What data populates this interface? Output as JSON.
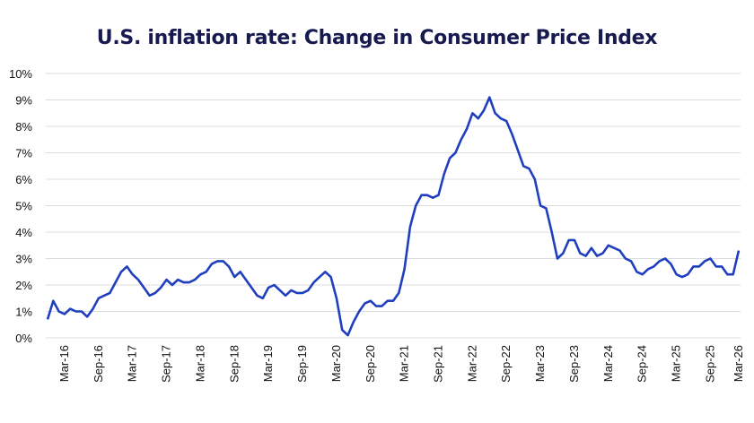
{
  "chart_data": {
    "type": "line",
    "title": "U.S. inflation rate: Change in Consumer Price Index",
    "xlabel": "",
    "ylabel": "",
    "ylim": [
      0,
      10
    ],
    "yticks": [
      "0%",
      "1%",
      "2%",
      "3%",
      "4%",
      "5%",
      "6%",
      "7%",
      "8%",
      "9%",
      "10%"
    ],
    "grid": true,
    "line_color": "#1f3fbf",
    "x": [
      "Dec-15",
      "Jan-16",
      "Feb-16",
      "Mar-16",
      "Apr-16",
      "May-16",
      "Jun-16",
      "Jul-16",
      "Aug-16",
      "Sep-16",
      "Oct-16",
      "Nov-16",
      "Dec-16",
      "Jan-17",
      "Feb-17",
      "Mar-17",
      "Apr-17",
      "May-17",
      "Jun-17",
      "Jul-17",
      "Aug-17",
      "Sep-17",
      "Oct-17",
      "Nov-17",
      "Dec-17",
      "Jan-18",
      "Feb-18",
      "Mar-18",
      "Apr-18",
      "May-18",
      "Jun-18",
      "Jul-18",
      "Aug-18",
      "Sep-18",
      "Oct-18",
      "Nov-18",
      "Dec-18",
      "Jan-19",
      "Feb-19",
      "Mar-19",
      "Apr-19",
      "May-19",
      "Jun-19",
      "Jul-19",
      "Aug-19",
      "Sep-19",
      "Oct-19",
      "Nov-19",
      "Dec-19",
      "Jan-20",
      "Feb-20",
      "Mar-20",
      "Apr-20",
      "May-20",
      "Jun-20",
      "Jul-20",
      "Aug-20",
      "Sep-20",
      "Oct-20",
      "Nov-20",
      "Dec-20",
      "Jan-21",
      "Feb-21",
      "Mar-21",
      "Apr-21",
      "May-21",
      "Jun-21",
      "Jul-21",
      "Aug-21",
      "Sep-21",
      "Oct-21",
      "Nov-21",
      "Dec-21",
      "Jan-22",
      "Feb-22",
      "Mar-22",
      "Apr-22",
      "May-22",
      "Jun-22",
      "Jul-22",
      "Aug-22",
      "Sep-22",
      "Oct-22",
      "Nov-22",
      "Dec-22",
      "Jan-23",
      "Feb-23",
      "Mar-23",
      "Apr-23",
      "May-23",
      "Jun-23",
      "Jul-23",
      "Aug-23",
      "Sep-23",
      "Oct-23",
      "Nov-23",
      "Dec-23",
      "Jan-24",
      "Feb-24",
      "Mar-24",
      "Apr-24",
      "May-24",
      "Jun-24",
      "Jul-24",
      "Aug-24",
      "Sep-24",
      "Oct-24",
      "Nov-24",
      "Dec-24",
      "Jan-25",
      "Feb-25",
      "Mar-25",
      "Apr-25",
      "May-25",
      "Jun-25",
      "Jul-25",
      "Aug-25",
      "Sep-25",
      "Nov-25",
      "Dec-25",
      "Jan-26",
      "Feb-26",
      "Mar-26"
    ],
    "values": [
      0.7,
      1.4,
      1.0,
      0.9,
      1.1,
      1.0,
      1.0,
      0.8,
      1.1,
      1.5,
      1.6,
      1.7,
      2.1,
      2.5,
      2.7,
      2.4,
      2.2,
      1.9,
      1.6,
      1.7,
      1.9,
      2.2,
      2.0,
      2.2,
      2.1,
      2.1,
      2.2,
      2.4,
      2.5,
      2.8,
      2.9,
      2.9,
      2.7,
      2.3,
      2.5,
      2.2,
      1.9,
      1.6,
      1.5,
      1.9,
      2.0,
      1.8,
      1.6,
      1.8,
      1.7,
      1.7,
      1.8,
      2.1,
      2.3,
      2.5,
      2.3,
      1.5,
      0.3,
      0.1,
      0.6,
      1.0,
      1.3,
      1.4,
      1.2,
      1.2,
      1.4,
      1.4,
      1.7,
      2.6,
      4.2,
      5.0,
      5.4,
      5.4,
      5.3,
      5.4,
      6.2,
      6.8,
      7.0,
      7.5,
      7.9,
      8.5,
      8.3,
      8.6,
      9.1,
      8.5,
      8.3,
      8.2,
      7.7,
      7.1,
      6.5,
      6.4,
      6.0,
      5.0,
      4.9,
      4.0,
      3.0,
      3.2,
      3.7,
      3.7,
      3.2,
      3.1,
      3.4,
      3.1,
      3.2,
      3.5,
      3.4,
      3.3,
      3.0,
      2.9,
      2.5,
      2.4,
      2.6,
      2.7,
      2.9,
      3.0,
      2.8,
      2.4,
      2.3,
      2.4,
      2.7,
      2.7,
      2.9,
      3.0,
      2.7,
      2.7,
      2.4,
      2.4,
      3.3
    ],
    "xtick_labels": [
      "Mar-16",
      "Sep-16",
      "Mar-17",
      "Sep-17",
      "Mar-18",
      "Sep-18",
      "Mar-19",
      "Sep-19",
      "Mar-20",
      "Sep-20",
      "Mar-21",
      "Sep-21",
      "Mar-22",
      "Sep-22",
      "Mar-23",
      "Sep-23",
      "Mar-24",
      "Sep-24",
      "Mar-25",
      "Sep-25",
      "Mar-26"
    ]
  }
}
